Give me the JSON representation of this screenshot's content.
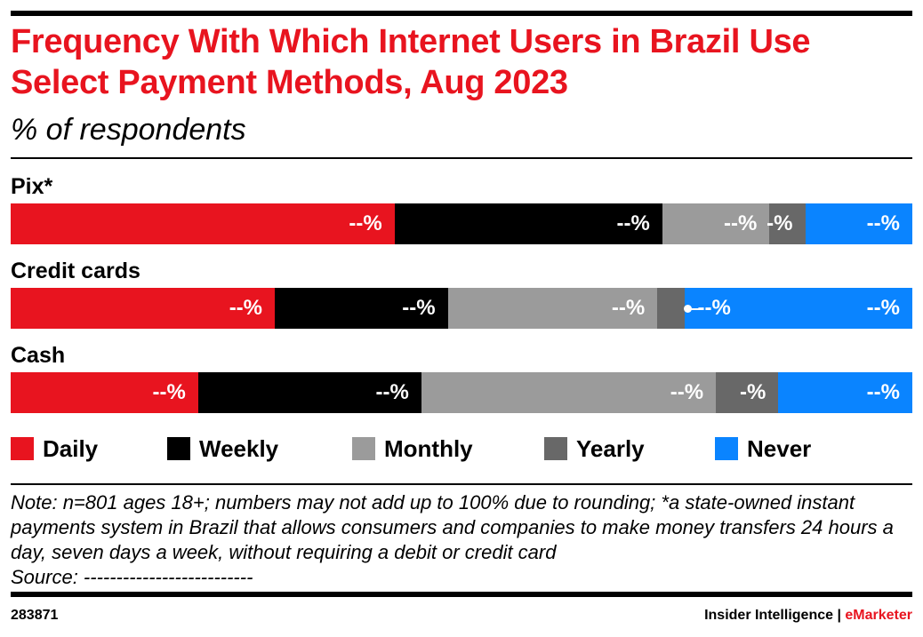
{
  "title": "Frequency With Which Internet Users in Brazil Use Select Payment Methods, Aug 2023",
  "subtitle": "% of respondents",
  "chart_data": {
    "type": "bar",
    "orientation": "horizontal",
    "stacked": true,
    "categories": [
      "Pix*",
      "Credit cards",
      "Cash"
    ],
    "series": [
      {
        "name": "Daily",
        "color": "#e8141f",
        "values": [
          43,
          29,
          21
        ],
        "labels": [
          "--%",
          "--%",
          "--%"
        ]
      },
      {
        "name": "Weekly",
        "color": "#000000",
        "values": [
          30,
          19,
          25
        ],
        "labels": [
          "--%",
          "--%",
          "--%"
        ]
      },
      {
        "name": "Monthly",
        "color": "#9b9b9b",
        "values": [
          12,
          23,
          33
        ],
        "labels": [
          "--%",
          "--%",
          "--%"
        ]
      },
      {
        "name": "Yearly",
        "color": "#686868",
        "values": [
          4,
          3,
          7
        ],
        "labels": [
          "-%",
          "--%",
          "-%"
        ]
      },
      {
        "name": "Never",
        "color": "#0a84ff",
        "values": [
          12,
          25,
          15
        ],
        "labels": [
          "--%",
          "--%",
          "--%"
        ]
      }
    ],
    "xlim": [
      0,
      100
    ],
    "legend_position": "bottom",
    "grid": false
  },
  "note": "Note: n=801 ages 18+; numbers may not add up to 100% due to rounding; *a state-owned instant payments system in Brazil that allows consumers and companies to make money transfers 24 hours a day, seven days a week, without requiring a debit or credit card",
  "source": "Source: --------------------------",
  "footer": {
    "chart_id": "283871",
    "brand_main": "Insider Intelligence",
    "brand_sep": " | ",
    "brand_accent": "eMarketer"
  }
}
